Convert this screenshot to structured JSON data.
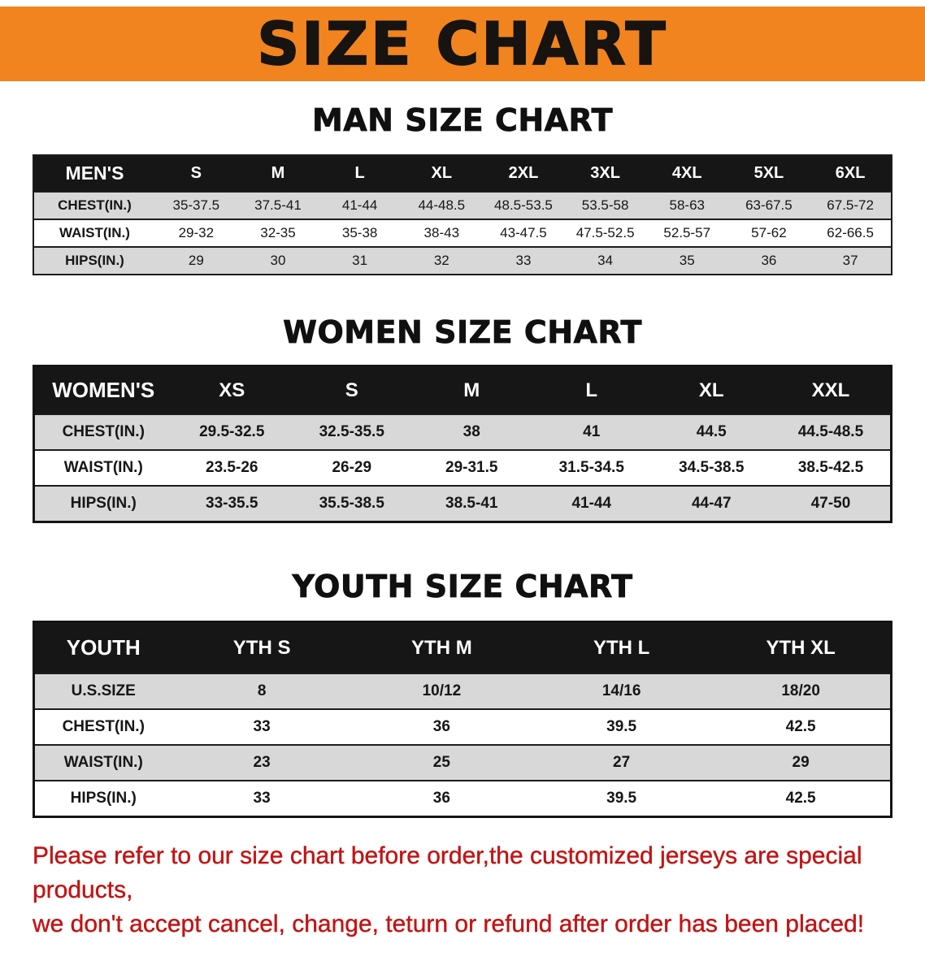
{
  "banner": {
    "title": "SIZE CHART"
  },
  "chart_data": [
    {
      "type": "table",
      "title": "MAN SIZE CHART",
      "columns": [
        "MEN'S",
        "S",
        "M",
        "L",
        "XL",
        "2XL",
        "3XL",
        "4XL",
        "5XL",
        "6XL"
      ],
      "rows": [
        [
          "CHEST(IN.)",
          "35-37.5",
          "37.5-41",
          "41-44",
          "44-48.5",
          "48.5-53.5",
          "53.5-58",
          "58-63",
          "63-67.5",
          "67.5-72"
        ],
        [
          "WAIST(IN.)",
          "29-32",
          "32-35",
          "35-38",
          "38-43",
          "43-47.5",
          "47.5-52.5",
          "52.5-57",
          "57-62",
          "62-66.5"
        ],
        [
          "HIPS(IN.)",
          "29",
          "30",
          "31",
          "32",
          "33",
          "34",
          "35",
          "36",
          "37"
        ]
      ]
    },
    {
      "type": "table",
      "title": "WOMEN SIZE CHART",
      "columns": [
        "WOMEN'S",
        "XS",
        "S",
        "M",
        "L",
        "XL",
        "XXL"
      ],
      "rows": [
        [
          "CHEST(IN.)",
          "29.5-32.5",
          "32.5-35.5",
          "38",
          "41",
          "44.5",
          "44.5-48.5"
        ],
        [
          "WAIST(IN.)",
          "23.5-26",
          "26-29",
          "29-31.5",
          "31.5-34.5",
          "34.5-38.5",
          "38.5-42.5"
        ],
        [
          "HIPS(IN.)",
          "33-35.5",
          "35.5-38.5",
          "38.5-41",
          "41-44",
          "44-47",
          "47-50"
        ]
      ]
    },
    {
      "type": "table",
      "title": "YOUTH SIZE CHART",
      "columns": [
        "YOUTH",
        "YTH S",
        "YTH M",
        "YTH L",
        "YTH XL"
      ],
      "rows": [
        [
          "U.S.SIZE",
          "8",
          "10/12",
          "14/16",
          "18/20"
        ],
        [
          "CHEST(IN.)",
          "33",
          "36",
          "39.5",
          "42.5"
        ],
        [
          "WAIST(IN.)",
          "23",
          "25",
          "27",
          "29"
        ],
        [
          "HIPS(IN.)",
          "33",
          "36",
          "39.5",
          "42.5"
        ]
      ]
    }
  ],
  "footer": {
    "line1": "Please refer to our size chart before order,the customized jerseys are special products,",
    "line2": "we don't accept cancel, change, teturn or refund after order has been placed!"
  },
  "colors": {
    "banner_bg": "#f1841f",
    "table_header_bg": "#161616",
    "table_header_text": "#ffffff",
    "row_stripe": "#d8d8d8",
    "notice_text": "#c31414"
  }
}
